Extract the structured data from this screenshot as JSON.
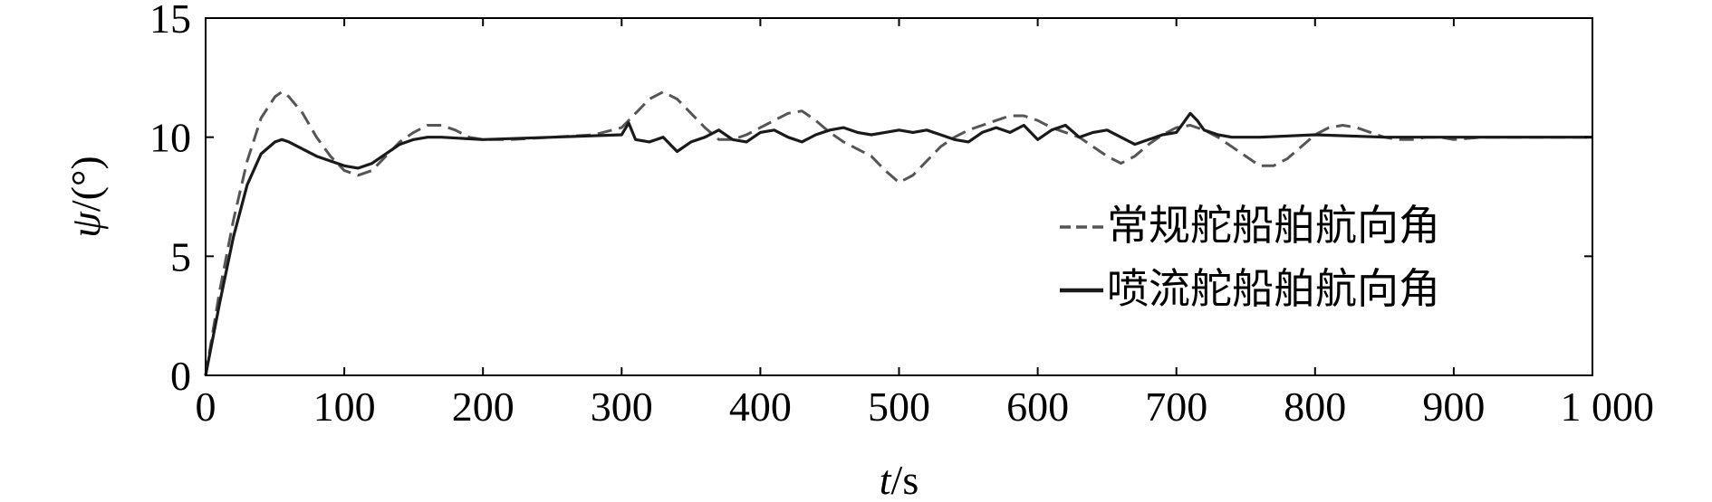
{
  "chart_data": {
    "type": "line",
    "xlabel_var": "t",
    "xlabel_unit": "/s",
    "ylabel_var": "ψ",
    "ylabel_unit": "/(°)",
    "xlim": [
      0,
      1000
    ],
    "ylim": [
      0,
      15
    ],
    "x_ticks": [
      0,
      100,
      200,
      300,
      400,
      500,
      600,
      700,
      800,
      900,
      1000
    ],
    "x_tick_labels": [
      "0",
      "100",
      "200",
      "300",
      "400",
      "500",
      "600",
      "700",
      "800",
      "900",
      "1 000"
    ],
    "y_ticks": [
      0,
      5,
      10,
      15
    ],
    "y_tick_labels": [
      "0",
      "5",
      "10",
      "15"
    ],
    "grid": false,
    "legend_position": "center-right",
    "series": [
      {
        "name": "常规舵船舶航向角",
        "style": "dashed",
        "color": "#555555",
        "x": [
          0,
          10,
          20,
          30,
          40,
          50,
          55,
          60,
          70,
          80,
          90,
          100,
          110,
          120,
          130,
          140,
          150,
          160,
          170,
          180,
          190,
          200,
          220,
          250,
          280,
          300,
          310,
          320,
          330,
          340,
          350,
          360,
          370,
          380,
          390,
          400,
          410,
          420,
          430,
          440,
          450,
          460,
          470,
          480,
          490,
          500,
          510,
          520,
          530,
          540,
          550,
          560,
          570,
          580,
          590,
          600,
          610,
          620,
          630,
          640,
          650,
          660,
          670,
          680,
          690,
          700,
          710,
          720,
          730,
          740,
          750,
          760,
          770,
          780,
          790,
          800,
          810,
          820,
          830,
          840,
          850,
          860,
          870,
          880,
          890,
          900,
          920,
          950,
          980,
          1000
        ],
        "y": [
          0,
          3.5,
          6.5,
          9.0,
          10.8,
          11.7,
          11.9,
          11.7,
          11.0,
          10.0,
          9.2,
          8.6,
          8.4,
          8.6,
          9.2,
          9.8,
          10.2,
          10.5,
          10.5,
          10.3,
          10.0,
          9.9,
          9.9,
          10.0,
          10.1,
          10.4,
          11.0,
          11.6,
          11.9,
          11.6,
          11.0,
          10.4,
          9.9,
          9.9,
          10.1,
          10.4,
          10.7,
          11.0,
          11.1,
          10.7,
          10.2,
          9.8,
          9.5,
          9.2,
          8.6,
          8.1,
          8.4,
          9.0,
          9.6,
          10.0,
          10.3,
          10.5,
          10.7,
          10.9,
          10.9,
          10.7,
          10.4,
          10.2,
          10.0,
          9.6,
          9.2,
          8.9,
          9.2,
          9.7,
          10.1,
          10.4,
          10.5,
          10.3,
          10.0,
          9.6,
          9.2,
          8.8,
          8.8,
          9.1,
          9.6,
          10.1,
          10.4,
          10.5,
          10.4,
          10.2,
          10.0,
          9.9,
          9.9,
          10.0,
          10.0,
          9.9,
          10.0,
          10.0,
          10.0,
          10.0
        ]
      },
      {
        "name": "喷流舵船舶航向角",
        "style": "solid",
        "color": "#1a1a1a",
        "x": [
          0,
          10,
          20,
          30,
          40,
          50,
          55,
          60,
          70,
          80,
          90,
          100,
          110,
          120,
          130,
          140,
          150,
          160,
          170,
          200,
          250,
          300,
          305,
          310,
          320,
          330,
          340,
          350,
          360,
          370,
          380,
          390,
          400,
          410,
          420,
          430,
          440,
          450,
          460,
          470,
          480,
          490,
          500,
          510,
          520,
          530,
          540,
          550,
          560,
          570,
          580,
          590,
          600,
          610,
          620,
          630,
          640,
          650,
          660,
          670,
          680,
          690,
          700,
          705,
          710,
          715,
          720,
          730,
          740,
          760,
          800,
          850,
          900,
          950,
          1000
        ],
        "y": [
          0,
          3.0,
          5.8,
          8.0,
          9.3,
          9.8,
          9.9,
          9.8,
          9.5,
          9.2,
          9.0,
          8.8,
          8.7,
          8.9,
          9.3,
          9.7,
          9.9,
          10.0,
          10.0,
          9.9,
          10.0,
          10.1,
          10.6,
          9.9,
          9.8,
          10.0,
          9.4,
          9.8,
          10.0,
          10.3,
          9.9,
          9.8,
          10.2,
          10.3,
          10.0,
          9.8,
          10.1,
          10.3,
          10.4,
          10.2,
          10.1,
          10.2,
          10.3,
          10.2,
          10.3,
          10.1,
          9.9,
          9.8,
          10.2,
          10.4,
          10.2,
          10.5,
          9.9,
          10.3,
          10.5,
          10.0,
          10.2,
          10.3,
          10.0,
          9.7,
          9.9,
          10.1,
          10.2,
          10.6,
          11.0,
          10.7,
          10.3,
          10.1,
          10.0,
          10.0,
          10.1,
          10.0,
          10.0,
          10.0,
          10.0
        ]
      }
    ]
  }
}
